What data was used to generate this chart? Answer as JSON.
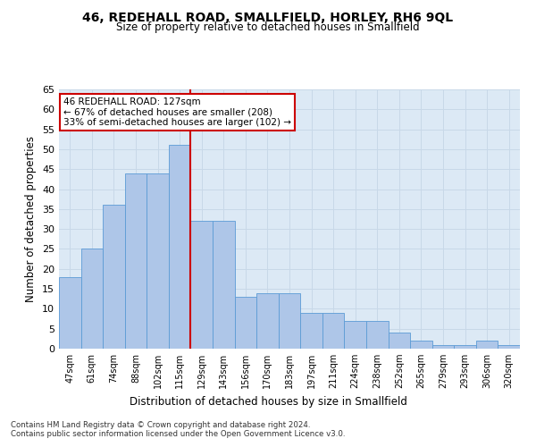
{
  "title": "46, REDEHALL ROAD, SMALLFIELD, HORLEY, RH6 9QL",
  "subtitle": "Size of property relative to detached houses in Smallfield",
  "xlabel": "Distribution of detached houses by size in Smallfield",
  "ylabel": "Number of detached properties",
  "categories": [
    "47sqm",
    "61sqm",
    "74sqm",
    "88sqm",
    "102sqm",
    "115sqm",
    "129sqm",
    "143sqm",
    "156sqm",
    "170sqm",
    "183sqm",
    "197sqm",
    "211sqm",
    "224sqm",
    "238sqm",
    "252sqm",
    "265sqm",
    "279sqm",
    "293sqm",
    "306sqm",
    "320sqm"
  ],
  "values": [
    18,
    25,
    36,
    44,
    44,
    51,
    32,
    32,
    13,
    14,
    14,
    9,
    9,
    7,
    7,
    4,
    2,
    1,
    1,
    2,
    1
  ],
  "bar_color": "#aec6e8",
  "bar_edge_color": "#5b9bd5",
  "grid_color": "#c8d8e8",
  "background_color": "#dce9f5",
  "vline_color": "#cc0000",
  "annotation_text": "46 REDEHALL ROAD: 127sqm\n← 67% of detached houses are smaller (208)\n33% of semi-detached houses are larger (102) →",
  "annotation_box_color": "#ffffff",
  "annotation_box_edge_color": "#cc0000",
  "footnote": "Contains HM Land Registry data © Crown copyright and database right 2024.\nContains public sector information licensed under the Open Government Licence v3.0.",
  "ylim": [
    0,
    65
  ],
  "yticks": [
    0,
    5,
    10,
    15,
    20,
    25,
    30,
    35,
    40,
    45,
    50,
    55,
    60,
    65
  ]
}
